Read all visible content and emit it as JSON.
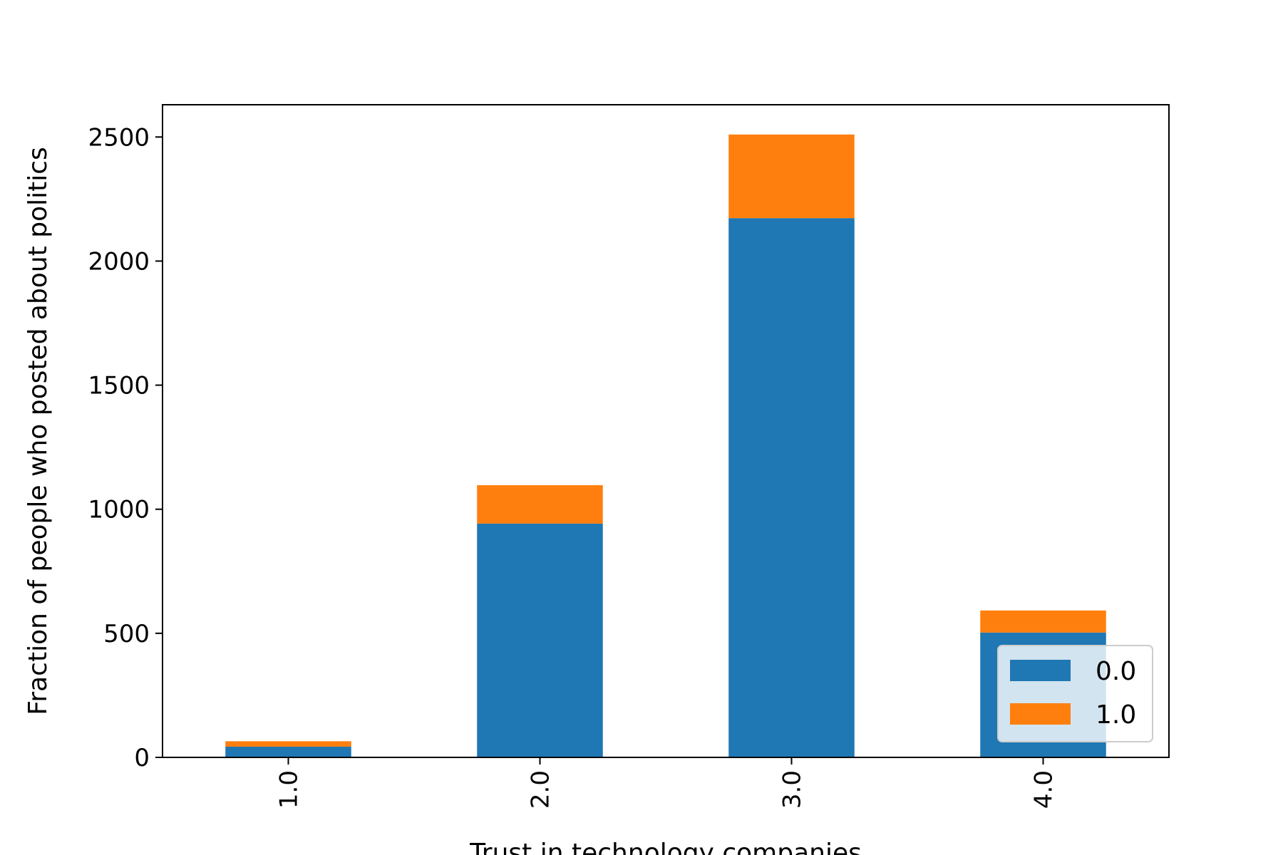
{
  "chart_data": {
    "type": "bar",
    "stacked": true,
    "title": "",
    "xlabel": "Trust in technology companies",
    "ylabel": "Fraction of people who posted about politics",
    "categories": [
      "1.0",
      "2.0",
      "3.0",
      "4.0"
    ],
    "series": [
      {
        "name": "0.0",
        "values": [
          43,
          942,
          2173,
          503
        ],
        "color": "#1f77b4"
      },
      {
        "name": "1.0",
        "values": [
          22,
          155,
          337,
          89
        ],
        "color": "#ff7f0e"
      }
    ],
    "ylim": [
      0,
      2630
    ],
    "yticks": [
      0,
      500,
      1000,
      1500,
      2000,
      2500
    ],
    "ytick_labels": [
      "0",
      "500",
      "1000",
      "1500",
      "2000",
      "2500"
    ],
    "xtick_rotation": "vertical",
    "grid": false,
    "legend": {
      "position": "lower-right",
      "entries": [
        "0.0",
        "1.0"
      ]
    }
  }
}
